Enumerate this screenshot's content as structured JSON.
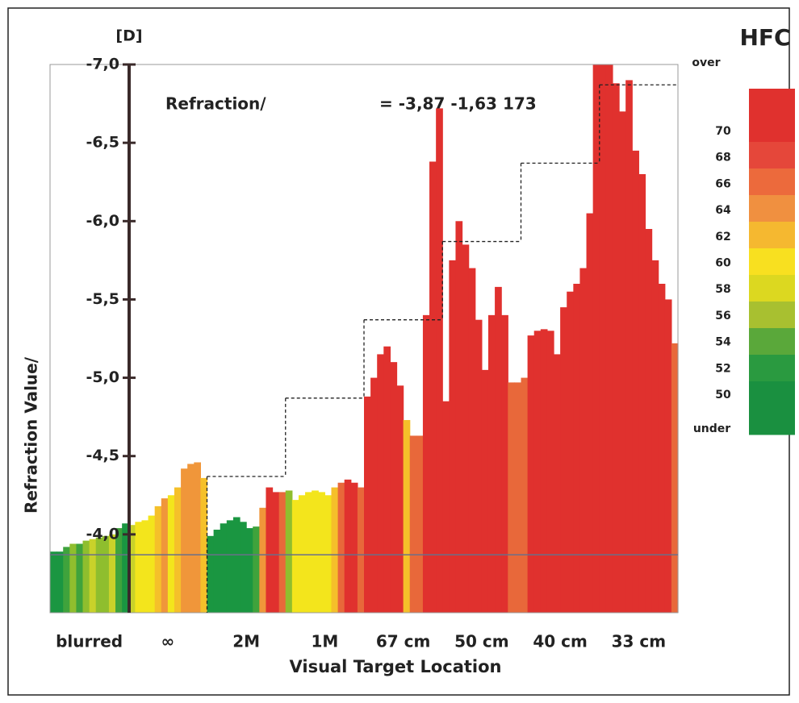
{
  "chart_data": {
    "type": "bar",
    "title": "HFC",
    "unit_label": "[D]",
    "annotation_label": "Refraction/",
    "annotation_value": "= -3,87 -1,63 173",
    "y_label": "Refraction Value/",
    "x_label": "Visual Target Location",
    "ylim": [
      -3.5,
      -7.0
    ],
    "yticks": [
      {
        "value": -7.0,
        "label": "-7,0"
      },
      {
        "value": -6.5,
        "label": "-6,5"
      },
      {
        "value": -6.0,
        "label": "-6,0"
      },
      {
        "value": -5.5,
        "label": "-5,5"
      },
      {
        "value": -5.0,
        "label": "-5,0"
      },
      {
        "value": -4.5,
        "label": "-4,5"
      },
      {
        "value": -4.0,
        "label": "-4,0"
      }
    ],
    "baseline": -3.87,
    "groups": [
      {
        "label": "blurred",
        "values": [
          -3.89,
          -3.89,
          -3.92,
          -3.94,
          -3.94,
          -3.96,
          -3.97,
          -3.98,
          -3.99,
          -4.0,
          -4.04,
          -4.07
        ],
        "colors": [
          "#1a9641",
          "#1a9641",
          "#3fa33c",
          "#8fbe2e",
          "#3fa33c",
          "#8fbe2e",
          "#c9d22a",
          "#8fbe2e",
          "#8fbe2e",
          "#c9d22a",
          "#3fa33c",
          "#1a9641"
        ]
      },
      {
        "label": "∞",
        "values": [
          -4.06,
          -4.08,
          -4.09,
          -4.12,
          -4.18,
          -4.23,
          -4.25,
          -4.3,
          -4.42,
          -4.45,
          -4.46,
          -4.36
        ],
        "colors": [
          "#c9d22a",
          "#f3e51c",
          "#f3e51c",
          "#f3e51c",
          "#f5c02a",
          "#f0963a",
          "#f3e51c",
          "#f5c02a",
          "#f0963a",
          "#f0963a",
          "#f0963a",
          "#f5c02a"
        ]
      },
      {
        "label": "2M",
        "target": -4.37,
        "values": [
          -3.99,
          -4.03,
          -4.07,
          -4.09,
          -4.11,
          -4.08,
          -4.04,
          -4.05,
          -4.17,
          -4.3,
          -4.27,
          -4.27
        ],
        "colors": [
          "#1a9641",
          "#1a9641",
          "#1a9641",
          "#1a9641",
          "#1a9641",
          "#1a9641",
          "#1a9641",
          "#3fa33c",
          "#f0963a",
          "#e0312e",
          "#e0312e",
          "#e8683a"
        ]
      },
      {
        "label": "1M",
        "target": -4.87,
        "values": [
          -4.28,
          -4.22,
          -4.25,
          -4.27,
          -4.28,
          -4.27,
          -4.25,
          -4.3,
          -4.33,
          -4.35,
          -4.33,
          -4.3
        ],
        "colors": [
          "#8fbe2e",
          "#f3e51c",
          "#f3e51c",
          "#f3e51c",
          "#f3e51c",
          "#f3e51c",
          "#f3e51c",
          "#f5c02a",
          "#e8683a",
          "#e0312e",
          "#e0312e",
          "#e8683a"
        ]
      },
      {
        "label": "67 cm",
        "target": -5.37,
        "values": [
          -4.88,
          -5.0,
          -5.15,
          -5.2,
          -5.1,
          -4.95,
          -4.73,
          -4.63,
          -4.63,
          -5.4,
          -6.38,
          -6.72
        ],
        "colors": [
          "#e0312e",
          "#e0312e",
          "#e0312e",
          "#e0312e",
          "#e0312e",
          "#e0312e",
          "#f5c02a",
          "#e8683a",
          "#e8683a",
          "#e0312e",
          "#e0312e",
          "#e0312e"
        ]
      },
      {
        "label": "50 cm",
        "target": -5.87,
        "values": [
          -4.85,
          -5.75,
          -6.0,
          -5.85,
          -5.7,
          -5.37,
          -5.05,
          -5.4,
          -5.58,
          -5.4,
          -4.97,
          -4.97
        ],
        "colors": [
          "#e0312e",
          "#e0312e",
          "#e0312e",
          "#e0312e",
          "#e0312e",
          "#e0312e",
          "#e0312e",
          "#e0312e",
          "#e0312e",
          "#e0312e",
          "#e8683a",
          "#e8683a"
        ]
      },
      {
        "label": "40 cm",
        "target": -6.37,
        "values": [
          -5.0,
          -5.27,
          -5.3,
          -5.31,
          -5.3,
          -5.15,
          -5.45,
          -5.55,
          -5.6,
          -5.7,
          -6.05,
          -7.0
        ],
        "colors": [
          "#e8683a",
          "#e0312e",
          "#e0312e",
          "#e0312e",
          "#e0312e",
          "#e0312e",
          "#e0312e",
          "#e0312e",
          "#e0312e",
          "#e0312e",
          "#e0312e",
          "#e0312e"
        ]
      },
      {
        "label": "33 cm",
        "target": -6.87,
        "values": [
          -7.0,
          -7.0,
          -6.88,
          -6.7,
          -6.9,
          -6.45,
          -6.3,
          -5.95,
          -5.75,
          -5.6,
          -5.5,
          -5.22
        ],
        "colors": [
          "#e0312e",
          "#e0312e",
          "#e0312e",
          "#e0312e",
          "#e0312e",
          "#e0312e",
          "#e0312e",
          "#e0312e",
          "#e0312e",
          "#e0312e",
          "#e0312e",
          "#e8683a"
        ]
      }
    ],
    "colorbar": {
      "top_label": "over",
      "bottom_label": "under",
      "colors": [
        "#e0312e",
        "#e5473a",
        "#ec6a3c",
        "#f09040",
        "#f5b830",
        "#f8e020",
        "#dcd820",
        "#a8c030",
        "#5aa83a",
        "#2a9a40",
        "#1a9040"
      ],
      "ticks": [
        70,
        68,
        66,
        64,
        62,
        60,
        58,
        56,
        54,
        52,
        50
      ]
    }
  }
}
